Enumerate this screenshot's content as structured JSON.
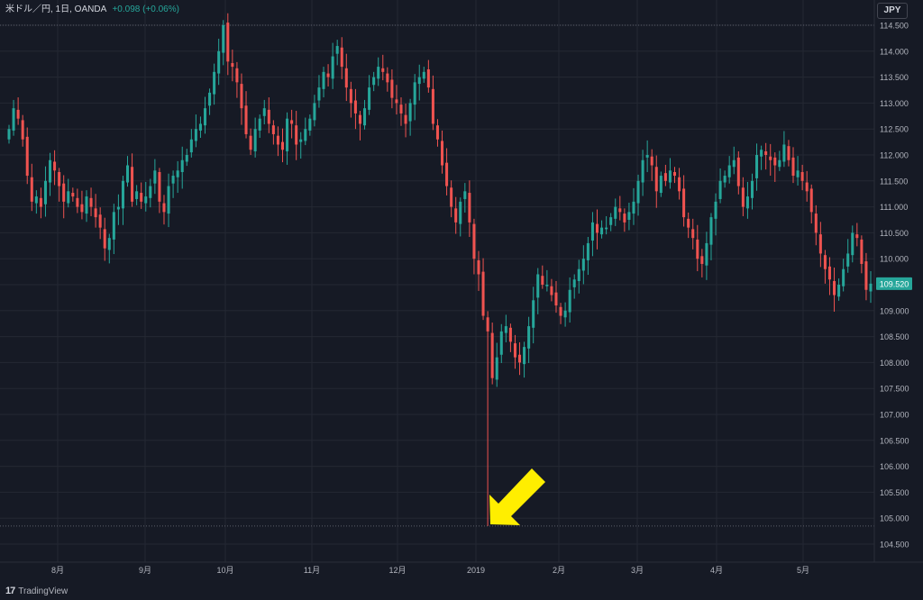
{
  "legend": {
    "symbol": "米ドル／円, 1日, OANDA",
    "change": "+0.098 (+0.06%)"
  },
  "currency_button": "JPY",
  "footer": {
    "logo": "17",
    "brand": "TradingView"
  },
  "colors": {
    "background": "#161a25",
    "grid": "#242833",
    "up": "#26a69a",
    "down": "#ef5350",
    "annotation_arrow": "#ffee00"
  },
  "chart_data": {
    "type": "candlestick",
    "ylim": [
      104.5,
      114.5
    ],
    "yticks": [
      "104.500",
      "105.000",
      "105.500",
      "106.000",
      "106.500",
      "107.000",
      "107.500",
      "108.000",
      "108.500",
      "109.000",
      "109.500",
      "110.000",
      "110.500",
      "111.000",
      "111.500",
      "112.000",
      "112.500",
      "113.000",
      "113.500",
      "114.000",
      "114.500"
    ],
    "xticks": [
      "8月",
      "9月",
      "10月",
      "11月",
      "12月",
      "2019",
      "2月",
      "3月",
      "4月",
      "5月"
    ],
    "last_price": "109.520",
    "high_line": 114.5,
    "low_line": 104.85,
    "annotation": {
      "type": "arrow",
      "color": "yellow",
      "target": "2019 flash crash low",
      "value": 104.85
    },
    "closes": [
      112.5,
      112.9,
      112.7,
      112.3,
      111.6,
      111.1,
      111.2,
      111.0,
      111.5,
      111.9,
      111.7,
      111.4,
      111.1,
      111.3,
      111.2,
      111.0,
      110.9,
      111.2,
      111.0,
      110.8,
      110.6,
      110.2,
      110.4,
      110.9,
      111.0,
      111.5,
      111.8,
      111.1,
      111.3,
      111.1,
      111.2,
      111.4,
      111.7,
      111.1,
      110.9,
      111.4,
      111.6,
      111.7,
      111.9,
      112.0,
      112.3,
      112.5,
      112.6,
      112.9,
      113.2,
      113.6,
      114.0,
      114.5,
      113.8,
      113.7,
      113.4,
      112.9,
      112.4,
      112.1,
      112.5,
      112.7,
      112.9,
      112.6,
      112.4,
      112.2,
      112.1,
      112.7,
      112.6,
      112.2,
      112.3,
      112.5,
      112.7,
      113.0,
      113.3,
      113.6,
      113.5,
      113.9,
      114.1,
      113.7,
      113.3,
      113.0,
      112.8,
      112.6,
      112.9,
      113.3,
      113.5,
      113.7,
      113.6,
      113.4,
      113.1,
      113.0,
      112.8,
      112.6,
      113.0,
      113.4,
      113.5,
      113.6,
      113.3,
      112.6,
      112.3,
      111.8,
      111.4,
      111.0,
      110.7,
      111.1,
      111.3,
      110.7,
      110.0,
      109.7,
      108.9,
      108.6,
      107.7,
      108.1,
      108.6,
      108.7,
      108.4,
      108.1,
      108.0,
      108.3,
      108.7,
      109.2,
      109.7,
      109.5,
      109.5,
      109.3,
      109.1,
      108.9,
      109.0,
      109.4,
      109.6,
      109.8,
      110.0,
      110.3,
      110.7,
      110.5,
      110.6,
      110.6,
      110.8,
      111.0,
      110.9,
      110.7,
      110.9,
      111.1,
      111.5,
      111.9,
      112.0,
      111.8,
      111.3,
      111.6,
      111.5,
      111.7,
      111.6,
      111.3,
      110.8,
      110.6,
      110.4,
      110.0,
      109.9,
      110.3,
      110.8,
      111.1,
      111.5,
      111.6,
      111.8,
      111.9,
      111.4,
      111.0,
      111.2,
      111.5,
      112.0,
      112.1,
      112.0,
      111.9,
      111.8,
      111.9,
      112.2,
      111.9,
      111.6,
      111.7,
      111.5,
      111.3,
      110.9,
      110.5,
      110.1,
      109.8,
      109.6,
      109.3,
      109.5,
      109.8,
      110.1,
      110.5,
      110.4,
      109.9,
      109.4,
      109.52
    ]
  }
}
